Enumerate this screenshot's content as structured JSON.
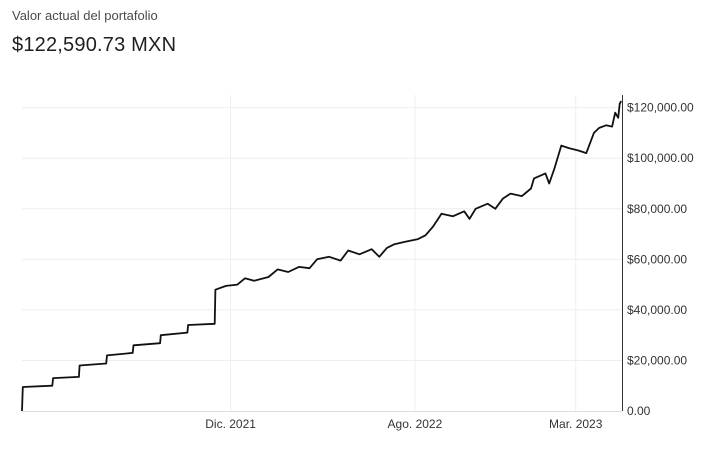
{
  "header": {
    "label": "Valor actual del portafolio",
    "value": "$122,590.73 MXN"
  },
  "colors": {
    "line": "#111111",
    "grid": "#eeeeee",
    "axis": "#333333",
    "text": "#333333"
  },
  "chart_data": {
    "type": "line",
    "title": "",
    "xlabel": "",
    "ylabel": "",
    "ylim": [
      0,
      125000
    ],
    "xlim": [
      "2021-03-01",
      "2023-05-01"
    ],
    "y_axis_position": "right",
    "y_ticks": [
      0,
      20000,
      40000,
      60000,
      80000,
      100000,
      120000
    ],
    "y_tick_labels": [
      "0.00",
      "$20,000.00",
      "$40,000.00",
      "$60,000.00",
      "$80,000.00",
      "$100,000.00",
      "$120,000.00"
    ],
    "x_ticks": [
      "2021-12-01",
      "2022-08-01",
      "2023-03-01"
    ],
    "x_tick_labels": [
      "Dic. 2021",
      "Ago. 2022",
      "Mar. 2023"
    ],
    "grid": true,
    "series": [
      {
        "values": [
          [
            "2021-03-01",
            0
          ],
          [
            "2021-03-02",
            9500
          ],
          [
            "2021-04-10",
            10000
          ],
          [
            "2021-04-11",
            13000
          ],
          [
            "2021-05-15",
            13500
          ],
          [
            "2021-05-16",
            18000
          ],
          [
            "2021-06-20",
            18800
          ],
          [
            "2021-06-21",
            22000
          ],
          [
            "2021-07-25",
            23000
          ],
          [
            "2021-07-26",
            26000
          ],
          [
            "2021-08-30",
            26800
          ],
          [
            "2021-08-31",
            30000
          ],
          [
            "2021-10-05",
            31000
          ],
          [
            "2021-10-06",
            34000
          ],
          [
            "2021-11-10",
            34500
          ],
          [
            "2021-11-11",
            48000
          ],
          [
            "2021-11-25",
            49500
          ],
          [
            "2021-12-10",
            50000
          ],
          [
            "2021-12-20",
            52500
          ],
          [
            "2022-01-01",
            51500
          ],
          [
            "2022-01-20",
            53000
          ],
          [
            "2022-02-01",
            56000
          ],
          [
            "2022-02-15",
            55000
          ],
          [
            "2022-03-01",
            57000
          ],
          [
            "2022-03-15",
            56500
          ],
          [
            "2022-03-25",
            60000
          ],
          [
            "2022-04-10",
            61000
          ],
          [
            "2022-04-25",
            59500
          ],
          [
            "2022-05-05",
            63500
          ],
          [
            "2022-05-20",
            62000
          ],
          [
            "2022-06-05",
            64000
          ],
          [
            "2022-06-15",
            61000
          ],
          [
            "2022-06-25",
            64500
          ],
          [
            "2022-07-05",
            66000
          ],
          [
            "2022-07-20",
            67000
          ],
          [
            "2022-08-05",
            68000
          ],
          [
            "2022-08-15",
            69500
          ],
          [
            "2022-08-25",
            73000
          ],
          [
            "2022-09-05",
            78000
          ],
          [
            "2022-09-20",
            77000
          ],
          [
            "2022-10-05",
            79000
          ],
          [
            "2022-10-12",
            76000
          ],
          [
            "2022-10-20",
            80000
          ],
          [
            "2022-11-05",
            82000
          ],
          [
            "2022-11-15",
            80000
          ],
          [
            "2022-11-25",
            84000
          ],
          [
            "2022-12-05",
            86000
          ],
          [
            "2022-12-20",
            85000
          ],
          [
            "2023-01-01",
            88000
          ],
          [
            "2023-01-05",
            92000
          ],
          [
            "2023-01-20",
            94000
          ],
          [
            "2023-01-25",
            90000
          ],
          [
            "2023-02-01",
            96000
          ],
          [
            "2023-02-10",
            105000
          ],
          [
            "2023-02-20",
            104000
          ],
          [
            "2023-03-05",
            103000
          ],
          [
            "2023-03-15",
            102000
          ],
          [
            "2023-03-25",
            110000
          ],
          [
            "2023-04-01",
            112000
          ],
          [
            "2023-04-10",
            113000
          ],
          [
            "2023-04-18",
            112500
          ],
          [
            "2023-04-22",
            118000
          ],
          [
            "2023-04-26",
            116000
          ],
          [
            "2023-04-28",
            121500
          ],
          [
            "2023-04-30",
            122590
          ]
        ]
      }
    ]
  }
}
